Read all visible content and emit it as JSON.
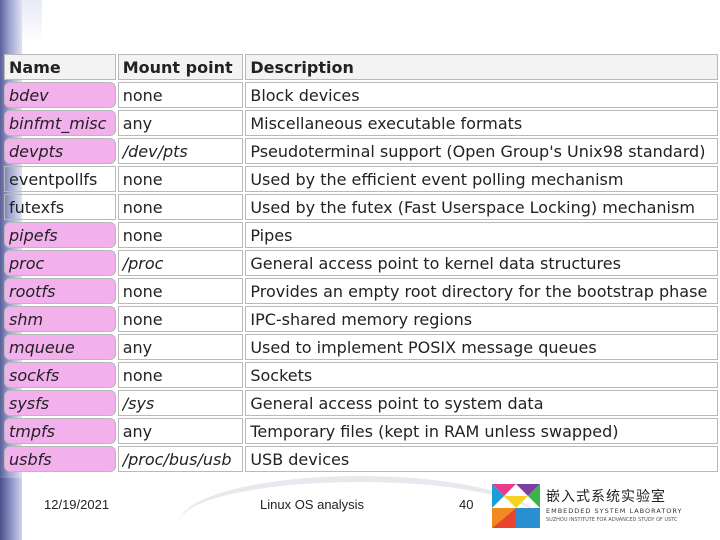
{
  "table": {
    "headers": [
      "Name",
      "Mount point",
      "Description"
    ],
    "rows": [
      {
        "name": "bdev",
        "mount": "none",
        "desc": "Block devices",
        "highlighted": true
      },
      {
        "name": "binfmt_misc",
        "mount": "any",
        "desc": "Miscellaneous executable formats",
        "highlighted": true
      },
      {
        "name": "devpts",
        "mount": "/dev/pts",
        "desc": "Pseudoterminal support (Open Group's Unix98 standard)",
        "highlighted": true
      },
      {
        "name": "eventpollfs",
        "mount": "none",
        "desc": "Used by the efficient event polling mechanism",
        "highlighted": false
      },
      {
        "name": "futexfs",
        "mount": "none",
        "desc": "Used by the futex (Fast Userspace Locking) mechanism",
        "highlighted": false
      },
      {
        "name": "pipefs",
        "mount": "none",
        "desc": "Pipes",
        "highlighted": true
      },
      {
        "name": "proc",
        "mount": "/proc",
        "desc": "General access point to kernel data structures",
        "highlighted": true
      },
      {
        "name": "rootfs",
        "mount": "none",
        "desc": "Provides an empty root directory for the bootstrap phase",
        "highlighted": true
      },
      {
        "name": "shm",
        "mount": "none",
        "desc": "IPC-shared memory regions",
        "highlighted": true
      },
      {
        "name": "mqueue",
        "mount": "any",
        "desc": "Used to implement POSIX message queues",
        "highlighted": true
      },
      {
        "name": "sockfs",
        "mount": "none",
        "desc": "Sockets",
        "highlighted": true
      },
      {
        "name": "sysfs",
        "mount": "/sys",
        "desc": "General access point to system data",
        "highlighted": true
      },
      {
        "name": "tmpfs",
        "mount": "any",
        "desc": "Temporary files (kept in RAM unless swapped)",
        "highlighted": true
      },
      {
        "name": "usbfs",
        "mount": "/proc/bus/usb",
        "desc": "USB devices",
        "highlighted": true
      }
    ]
  },
  "footer": {
    "date": "12/19/2021",
    "title": "Linux OS analysis",
    "page": "40",
    "lab_cn": "嵌入式系统实验室",
    "lab_en": "EMBEDDED SYSTEM LABORATORY",
    "lab_sub": "SUZHOU INSTITUTE FOR ADVANCED STUDY OF USTC"
  },
  "colors": {
    "highlight": "#f2b0ec",
    "stripe": "#5a5f9a"
  },
  "icons": {
    "logo": "tangram-logo-icon"
  }
}
